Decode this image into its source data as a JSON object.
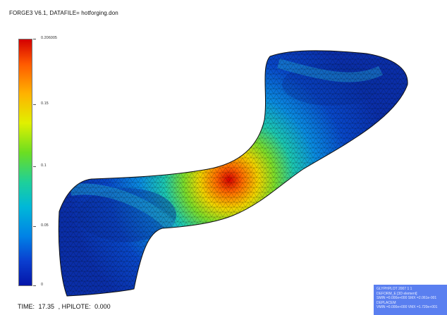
{
  "header": {
    "title": "FORGE3 V6.1, DATAFILE=  hotforging.don"
  },
  "legend": {
    "max_label": "0.206005",
    "ticks": [
      "0.15",
      "0.1",
      "0.05",
      "0"
    ],
    "colors": {
      "high": "#d40000",
      "mid": "#6bde21",
      "low": "#0515a8"
    }
  },
  "status": {
    "time_label": "TIME:",
    "time_value": "17.35",
    "hpilote_label": ", HPILOTE:",
    "hpilote_value": "0.000"
  },
  "infobox": {
    "line1": "GLYPHPLOT 2007 1 1",
    "line2": "DEFORM_E [3D element]",
    "line3": "SMIN =0.000e+000  SMX =2.061e-001",
    "line4": "DEPLACEM",
    "line5": "VMIN =0.000e+000  VMX =1.720e+001"
  }
}
